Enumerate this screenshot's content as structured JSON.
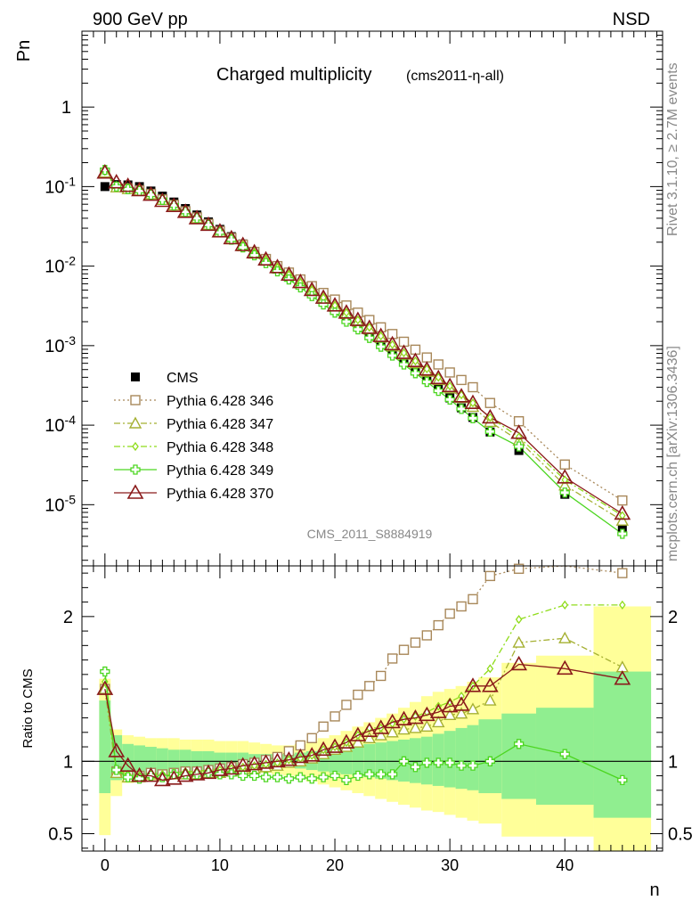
{
  "header": {
    "left": "900 GeV pp",
    "right": "NSD",
    "title_main": "Charged multiplicity",
    "title_sub": "(cms2011-η-all)"
  },
  "watermark": "CMS_2011_S8884919",
  "side_labels": {
    "rivet": "Rivet 3.1.10, ≥ 2.7M events",
    "mcplots": "mcplots.cern.ch [arXiv:1306.3436]"
  },
  "chart_data": [
    {
      "type": "scatter",
      "panel": "main",
      "ylabel": "Pn",
      "xlabel": "n",
      "xlim": [
        -2,
        48.5
      ],
      "ylim": [
        1.7e-06,
        9
      ],
      "yscale": "log",
      "legend_position": "bottom-left",
      "x_ticks": [
        "0",
        "10",
        "20",
        "30",
        "40"
      ],
      "y_ticks": [
        "1",
        "10-1",
        "10-2",
        "10-3",
        "10-4",
        "10-5"
      ],
      "cms_x": [
        0,
        1,
        2,
        3,
        4,
        5,
        6,
        7,
        8,
        9,
        10,
        11,
        12,
        13,
        14,
        15,
        16,
        17,
        18,
        19,
        20,
        21,
        22,
        23,
        24,
        25,
        26,
        27,
        28,
        29,
        30,
        31,
        32,
        33.5,
        36,
        40,
        45
      ],
      "series": [
        {
          "name": "CMS",
          "style": "data",
          "color": "#000000",
          "values": [
            0.1,
            0.106,
            0.105,
            0.1,
            0.088,
            0.076,
            0.064,
            0.053,
            0.044,
            0.036,
            0.029,
            0.0235,
            0.019,
            0.0152,
            0.0122,
            0.0097,
            0.0077,
            0.0061,
            0.0048,
            0.0037,
            0.0029,
            0.0023,
            0.00178,
            0.00138,
            0.00107,
            0.00082,
            0.00063,
            0.00049,
            0.00038,
            0.00029,
            0.00022,
            0.000165,
            0.000125,
            8.2e-05,
            4.8e-05,
            1.35e-05,
            4.9e-06
          ]
        },
        {
          "name": "Pythia 6.428 346",
          "style": "dotted",
          "marker": "square",
          "color": "#a8885a",
          "x": [
            0,
            1,
            2,
            3,
            4,
            5,
            6,
            7,
            8,
            9,
            10,
            11,
            12,
            13,
            14,
            15,
            16,
            17,
            18,
            19,
            20,
            21,
            22,
            23,
            24,
            25,
            26,
            27,
            28,
            29,
            30,
            31,
            32,
            33.5,
            36,
            40,
            45
          ],
          "values": [
            0.15,
            0.099,
            0.095,
            0.09,
            0.081,
            0.069,
            0.059,
            0.049,
            0.041,
            0.034,
            0.0276,
            0.0226,
            0.0186,
            0.0151,
            0.0123,
            0.01,
            0.0083,
            0.0068,
            0.0056,
            0.0046,
            0.0038,
            0.0032,
            0.0026,
            0.0021,
            0.0017,
            0.0014,
            0.00112,
            0.00089,
            0.00071,
            0.00058,
            0.00046,
            0.00037,
            0.0003,
            0.00019,
            0.000112,
            3.2e-05,
            1.13e-05
          ]
        },
        {
          "name": "Pythia 6.428 347",
          "style": "dashdot",
          "marker": "triangle",
          "color": "#a5b032",
          "x": [
            0,
            1,
            2,
            3,
            4,
            5,
            6,
            7,
            8,
            9,
            10,
            11,
            12,
            13,
            14,
            15,
            16,
            17,
            18,
            19,
            20,
            21,
            22,
            23,
            24,
            25,
            26,
            27,
            28,
            29,
            30,
            31,
            32,
            33.5,
            36,
            40,
            45
          ],
          "values": [
            0.15,
            0.098,
            0.093,
            0.089,
            0.08,
            0.068,
            0.058,
            0.048,
            0.04,
            0.033,
            0.0267,
            0.0218,
            0.0178,
            0.0144,
            0.0117,
            0.0094,
            0.0076,
            0.0061,
            0.0049,
            0.0039,
            0.0031,
            0.0025,
            0.002,
            0.0016,
            0.00126,
            0.00098,
            0.00077,
            0.0006,
            0.00047,
            0.00037,
            0.00029,
            0.00022,
            0.00017,
            0.00011,
            6.4e-05,
            1.75e-05,
            6.3e-06
          ]
        },
        {
          "name": "Pythia 6.428 348",
          "style": "dashdot",
          "marker": "diamond",
          "color": "#8fdc1a",
          "x": [
            0,
            1,
            2,
            3,
            4,
            5,
            6,
            7,
            8,
            9,
            10,
            11,
            12,
            13,
            14,
            15,
            16,
            17,
            18,
            19,
            20,
            21,
            22,
            23,
            24,
            25,
            26,
            27,
            28,
            29,
            30,
            31,
            32,
            33.5,
            36,
            40,
            45
          ],
          "values": [
            0.155,
            0.1,
            0.095,
            0.09,
            0.081,
            0.069,
            0.059,
            0.049,
            0.041,
            0.034,
            0.0274,
            0.0223,
            0.0183,
            0.0148,
            0.012,
            0.0096,
            0.0078,
            0.0062,
            0.005,
            0.004,
            0.0032,
            0.0026,
            0.0021,
            0.0017,
            0.00132,
            0.00103,
            0.00081,
            0.00064,
            0.00051,
            0.0004,
            0.00031,
            0.00024,
            0.00019,
            0.000125,
            7.1e-05,
            2.05e-05,
            7.3e-06
          ]
        },
        {
          "name": "Pythia 6.428 349",
          "style": "solid",
          "marker": "cross",
          "color": "#4cd620",
          "x": [
            0,
            1,
            2,
            3,
            4,
            5,
            6,
            7,
            8,
            9,
            10,
            11,
            12,
            13,
            14,
            15,
            16,
            17,
            18,
            19,
            20,
            21,
            22,
            23,
            24,
            25,
            26,
            27,
            28,
            29,
            30,
            31,
            32,
            33.5,
            36,
            40,
            45
          ],
          "values": [
            0.162,
            0.1,
            0.093,
            0.088,
            0.079,
            0.068,
            0.058,
            0.048,
            0.04,
            0.033,
            0.0265,
            0.0215,
            0.0172,
            0.0137,
            0.0109,
            0.0086,
            0.0068,
            0.0054,
            0.0042,
            0.0033,
            0.0026,
            0.002,
            0.0016,
            0.00125,
            0.00097,
            0.00075,
            0.00058,
            0.00045,
            0.00035,
            0.00027,
            0.00021,
            0.00016,
            0.000122,
            8.3e-05,
            5.4e-05,
            1.42e-05,
            4.3e-06
          ]
        },
        {
          "name": "Pythia 6.428 370",
          "style": "solid",
          "marker": "triangle-big",
          "color": "#8a1a1a",
          "x": [
            0,
            1,
            2,
            3,
            4,
            5,
            6,
            7,
            8,
            9,
            10,
            11,
            12,
            13,
            14,
            15,
            16,
            17,
            18,
            19,
            20,
            21,
            22,
            23,
            24,
            25,
            26,
            27,
            28,
            29,
            30,
            31,
            32,
            33.5,
            36,
            40,
            45
          ],
          "values": [
            0.15,
            0.113,
            0.102,
            0.09,
            0.079,
            0.066,
            0.057,
            0.048,
            0.04,
            0.033,
            0.0273,
            0.0224,
            0.0184,
            0.0149,
            0.0121,
            0.0097,
            0.0078,
            0.0063,
            0.005,
            0.004,
            0.0032,
            0.0026,
            0.0021,
            0.00167,
            0.00132,
            0.00104,
            0.00081,
            0.00064,
            0.0005,
            0.00039,
            0.00031,
            0.00023,
            0.00019,
            0.000125,
            8e-05,
            2.2e-05,
            7.7e-06
          ]
        }
      ]
    },
    {
      "type": "line",
      "panel": "ratio",
      "ylabel": "Ratio to CMS",
      "xlabel": "n",
      "xlim": [
        -2,
        48.5
      ],
      "ylim": [
        0.38,
        2.35
      ],
      "y_ticks": [
        "0.5",
        "1",
        "2"
      ],
      "x": [
        0,
        1,
        2,
        3,
        4,
        5,
        6,
        7,
        8,
        9,
        10,
        11,
        12,
        13,
        14,
        15,
        16,
        17,
        18,
        19,
        20,
        21,
        22,
        23,
        24,
        25,
        26,
        27,
        28,
        29,
        30,
        31,
        32,
        33.5,
        36,
        40,
        45
      ],
      "bands": {
        "bin_edges": [
          -0.5,
          0.5,
          1.5,
          2.5,
          3.5,
          4.5,
          5.5,
          6.5,
          7.5,
          8.5,
          9.5,
          10.5,
          11.5,
          12.5,
          13.5,
          14.5,
          15.5,
          16.5,
          17.5,
          18.5,
          19.5,
          20.5,
          21.5,
          22.5,
          23.5,
          24.5,
          25.5,
          26.5,
          27.5,
          28.5,
          29.5,
          30.5,
          31.5,
          32.5,
          34.5,
          37.5,
          42.5,
          47.5
        ],
        "inner_lo": [
          0.78,
          0.87,
          0.88,
          0.89,
          0.9,
          0.91,
          0.92,
          0.92,
          0.93,
          0.93,
          0.94,
          0.94,
          0.94,
          0.95,
          0.95,
          0.96,
          0.96,
          0.95,
          0.94,
          0.93,
          0.92,
          0.91,
          0.9,
          0.89,
          0.88,
          0.87,
          0.86,
          0.85,
          0.84,
          0.83,
          0.82,
          0.81,
          0.8,
          0.78,
          0.74,
          0.7,
          0.61
        ],
        "inner_hi": [
          1.42,
          1.18,
          1.12,
          1.11,
          1.1,
          1.09,
          1.08,
          1.08,
          1.07,
          1.07,
          1.06,
          1.06,
          1.06,
          1.05,
          1.05,
          1.05,
          1.05,
          1.06,
          1.07,
          1.08,
          1.09,
          1.1,
          1.11,
          1.12,
          1.13,
          1.14,
          1.15,
          1.16,
          1.17,
          1.19,
          1.21,
          1.23,
          1.25,
          1.29,
          1.33,
          1.37,
          1.62
        ],
        "outer_lo": [
          0.49,
          0.76,
          0.85,
          0.86,
          0.87,
          0.88,
          0.89,
          0.9,
          0.9,
          0.91,
          0.91,
          0.92,
          0.92,
          0.92,
          0.92,
          0.91,
          0.9,
          0.88,
          0.86,
          0.84,
          0.82,
          0.8,
          0.78,
          0.76,
          0.74,
          0.72,
          0.7,
          0.68,
          0.66,
          0.65,
          0.63,
          0.61,
          0.59,
          0.57,
          0.48,
          0.48,
          0.33
        ],
        "outer_hi": [
          1.57,
          1.22,
          1.18,
          1.17,
          1.16,
          1.16,
          1.16,
          1.15,
          1.15,
          1.15,
          1.14,
          1.14,
          1.14,
          1.13,
          1.12,
          1.11,
          1.11,
          1.12,
          1.14,
          1.16,
          1.18,
          1.21,
          1.24,
          1.27,
          1.3,
          1.33,
          1.37,
          1.41,
          1.45,
          1.48,
          1.5,
          1.52,
          1.55,
          1.58,
          1.68,
          1.73,
          2.07
        ],
        "inner_color": "#90ee90",
        "outer_color": "#ffff99"
      },
      "series": [
        {
          "name": "Pythia 6.428 346",
          "color": "#a8885a",
          "values": [
            1.5,
            0.93,
            0.9,
            0.9,
            0.92,
            0.91,
            0.92,
            0.93,
            0.93,
            0.94,
            0.95,
            0.96,
            0.98,
            0.99,
            1.01,
            1.03,
            1.07,
            1.11,
            1.16,
            1.24,
            1.31,
            1.39,
            1.46,
            1.52,
            1.59,
            1.71,
            1.77,
            1.82,
            1.87,
            1.94,
            2.02,
            2.07,
            2.12,
            2.28,
            2.33,
            2.37,
            2.3
          ]
        },
        {
          "name": "Pythia 6.428 347",
          "color": "#a5b032",
          "values": [
            1.5,
            0.92,
            0.89,
            0.89,
            0.91,
            0.9,
            0.91,
            0.91,
            0.91,
            0.92,
            0.92,
            0.93,
            0.94,
            0.95,
            0.96,
            0.97,
            0.99,
            1.0,
            1.02,
            1.05,
            1.08,
            1.1,
            1.13,
            1.16,
            1.18,
            1.2,
            1.22,
            1.23,
            1.24,
            1.27,
            1.32,
            1.33,
            1.36,
            1.42,
            1.82,
            1.85,
            1.65
          ]
        },
        {
          "name": "Pythia 6.428 348",
          "color": "#8fdc1a",
          "values": [
            1.55,
            0.94,
            0.91,
            0.9,
            0.92,
            0.91,
            0.92,
            0.93,
            0.93,
            0.94,
            0.94,
            0.95,
            0.96,
            0.97,
            0.98,
            0.99,
            1.01,
            1.02,
            1.04,
            1.08,
            1.1,
            1.13,
            1.18,
            1.23,
            1.23,
            1.26,
            1.29,
            1.31,
            1.34,
            1.38,
            1.41,
            1.45,
            1.52,
            1.64,
            1.98,
            2.08,
            2.08
          ]
        },
        {
          "name": "Pythia 6.428 349",
          "color": "#4cd620",
          "values": [
            1.62,
            0.94,
            0.89,
            0.88,
            0.9,
            0.89,
            0.91,
            0.91,
            0.91,
            0.92,
            0.91,
            0.91,
            0.9,
            0.9,
            0.89,
            0.89,
            0.88,
            0.89,
            0.88,
            0.89,
            0.9,
            0.87,
            0.9,
            0.91,
            0.91,
            0.91,
            1.0,
            0.96,
            0.99,
            0.99,
            0.99,
            0.97,
            0.97,
            1.0,
            1.12,
            1.05,
            0.87
          ]
        },
        {
          "name": "Pythia 6.428 370",
          "color": "#8a1a1a",
          "values": [
            1.5,
            1.07,
            0.97,
            0.9,
            0.9,
            0.87,
            0.88,
            0.9,
            0.91,
            0.92,
            0.94,
            0.95,
            0.97,
            0.98,
            0.99,
            1.0,
            1.01,
            1.03,
            1.04,
            1.08,
            1.1,
            1.13,
            1.18,
            1.21,
            1.23,
            1.27,
            1.29,
            1.3,
            1.32,
            1.34,
            1.38,
            1.39,
            1.52,
            1.52,
            1.67,
            1.64,
            1.57
          ]
        }
      ]
    }
  ]
}
